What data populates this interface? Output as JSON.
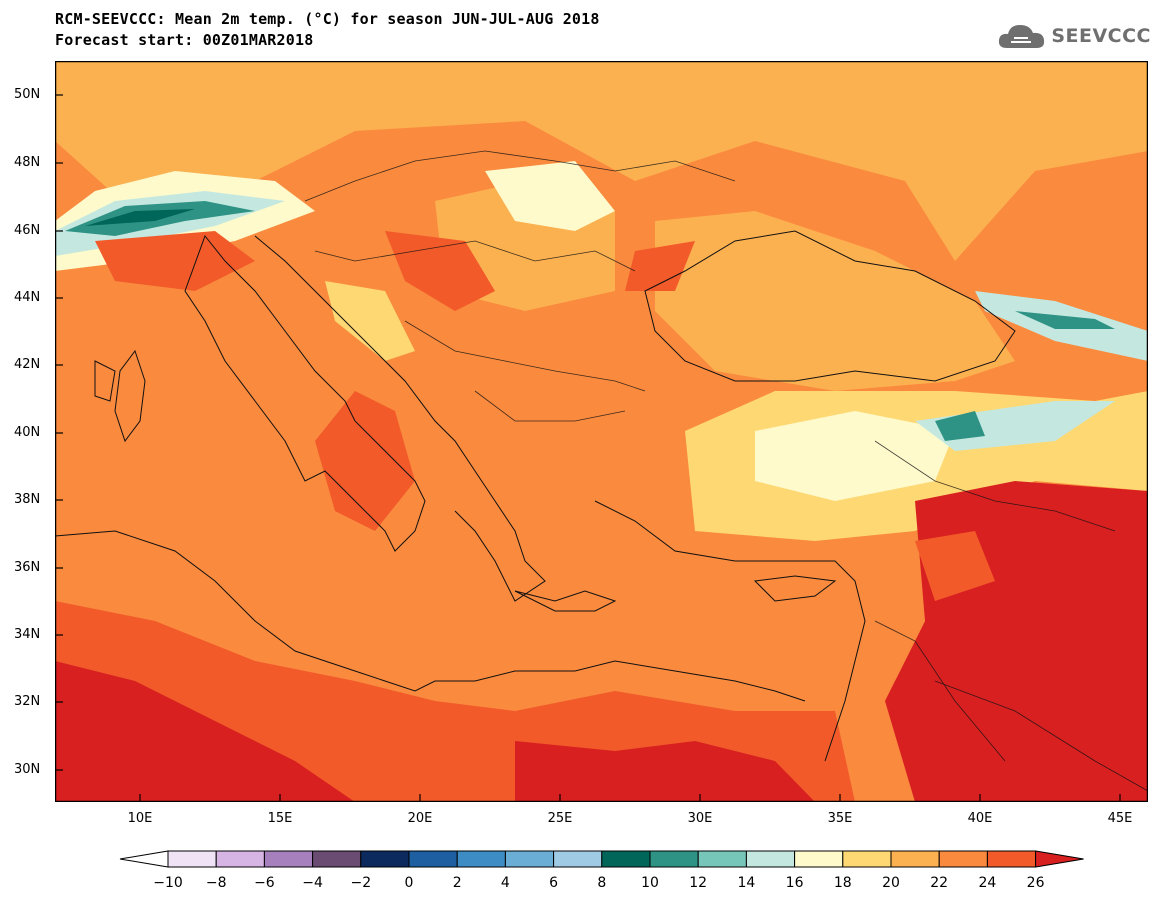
{
  "header": {
    "title_line1": "RCM-SEEVCCC: Mean 2m temp. (°C) for season JUN-JUL-AUG 2018",
    "title_line2": "Forecast start: 00Z01MAR2018"
  },
  "logo": {
    "text": "SEEVCCC",
    "icon": "cloud-icon"
  },
  "map": {
    "lat_labels": [
      "50N",
      "48N",
      "46N",
      "44N",
      "42N",
      "40N",
      "38N",
      "36N",
      "34N",
      "32N",
      "30N"
    ],
    "lon_labels": [
      "10E",
      "15E",
      "20E",
      "25E",
      "30E",
      "35E",
      "40E",
      "45E"
    ]
  },
  "colorbar": {
    "labels": [
      "−10",
      "−8",
      "−6",
      "−4",
      "−2",
      "0",
      "2",
      "4",
      "6",
      "8",
      "10",
      "12",
      "14",
      "16",
      "18",
      "20",
      "22",
      "24",
      "26"
    ],
    "colors": [
      "#ffffff",
      "#efe3f5",
      "#d6b4e4",
      "#a680bd",
      "#6a4c72",
      "#0c2a5e",
      "#1d5fa0",
      "#3d8cc4",
      "#6aaed6",
      "#9fcbe4",
      "#00665a",
      "#2e9385",
      "#76c6b9",
      "#c4e8e0",
      "#fefacb",
      "#fed873",
      "#fcb150",
      "#f98a3e",
      "#f25a2a",
      "#d92021"
    ]
  }
}
